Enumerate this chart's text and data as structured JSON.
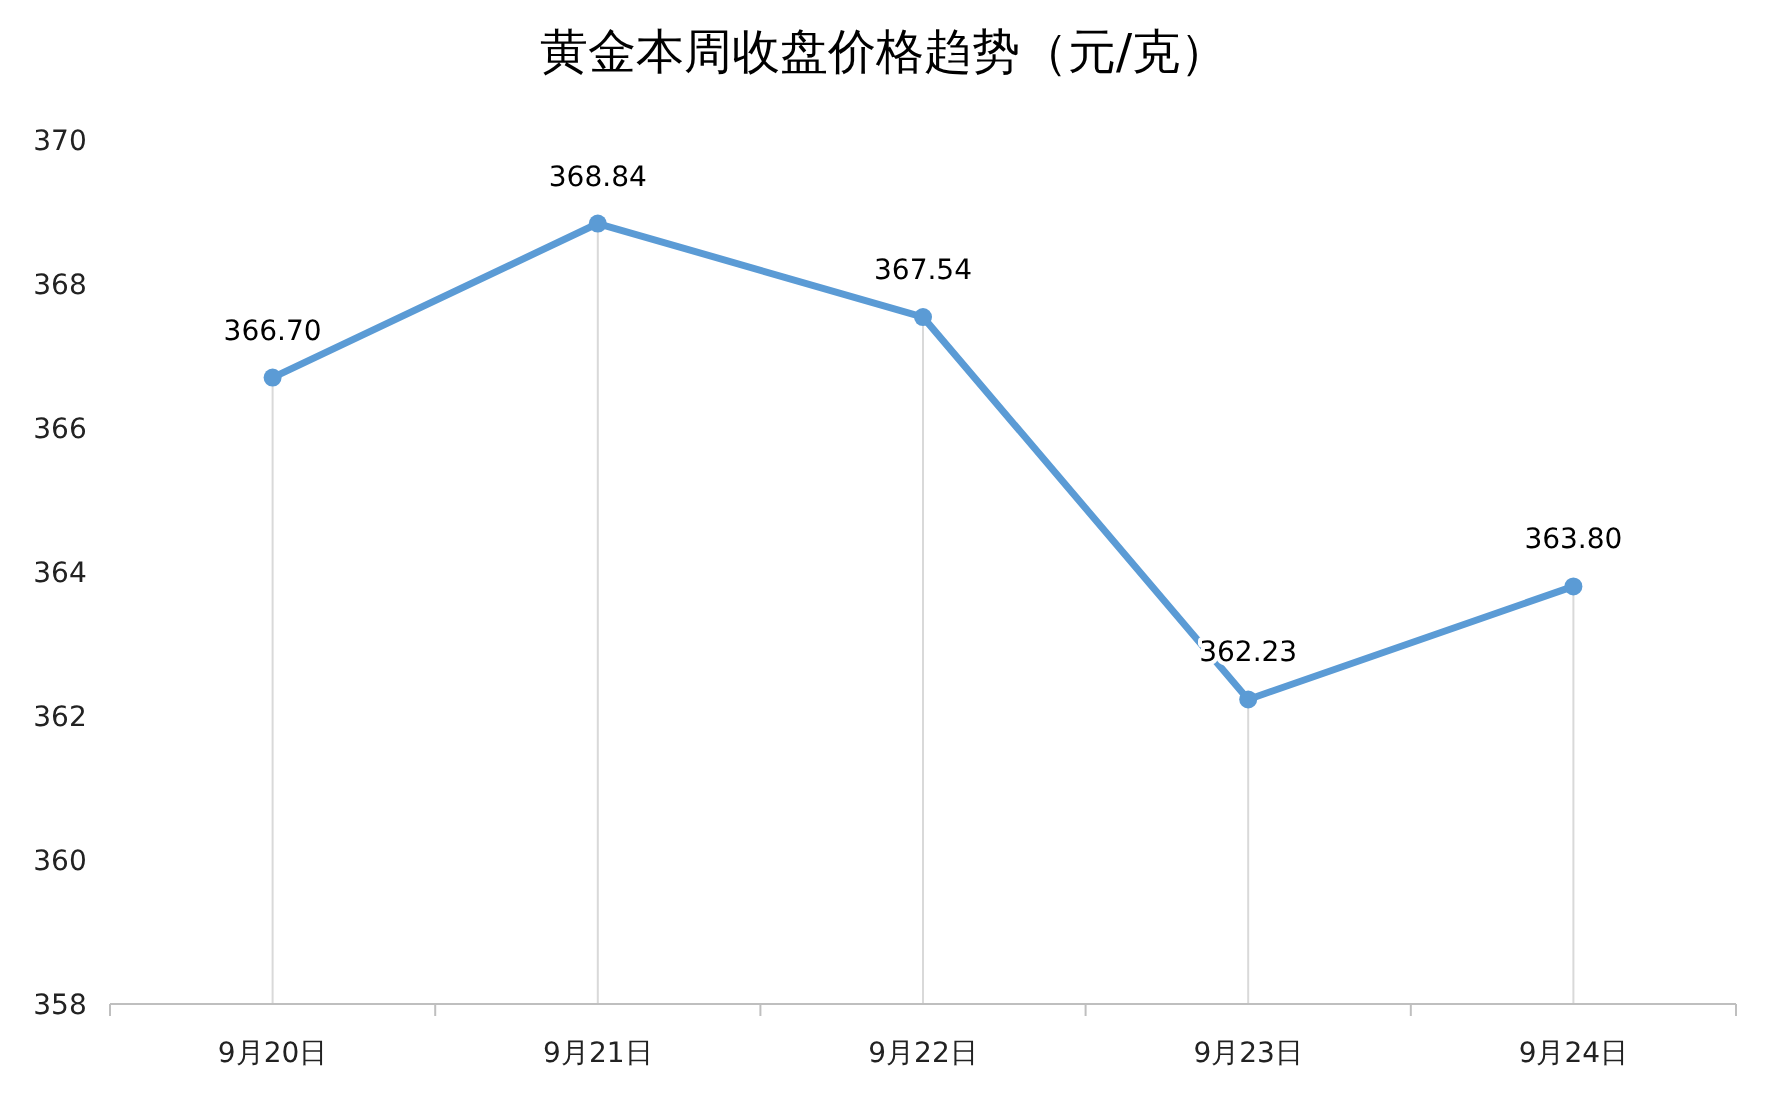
{
  "chart_data": {
    "type": "line",
    "title": "黄金本周收盘价格趋势（元/克）",
    "categories": [
      "9月20日",
      "9月21日",
      "9月22日",
      "9月23日",
      "9月24日"
    ],
    "series": [
      {
        "color": "#5b9bd5",
        "values": [
          366.7,
          368.84,
          367.54,
          362.23,
          363.8
        ],
        "value_labels": [
          "366.70",
          "368.84",
          "367.54",
          "362.23",
          "363.80"
        ]
      }
    ],
    "ylim": [
      358,
      370
    ],
    "yticks": [
      358,
      360,
      362,
      364,
      366,
      368,
      370
    ],
    "grid": "x",
    "marker": "circle",
    "line_style": "solid"
  }
}
